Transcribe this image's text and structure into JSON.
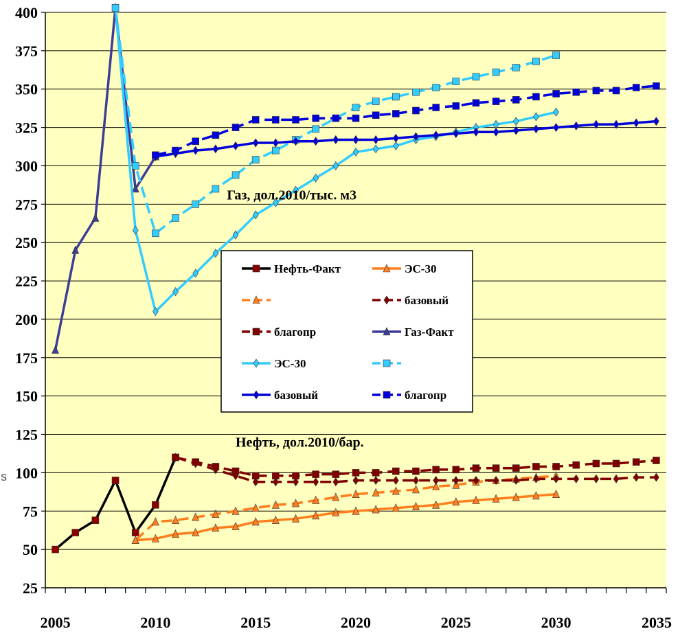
{
  "chart_data": {
    "type": "line",
    "title": "",
    "xlabel": "",
    "ylabel": "",
    "xlim": [
      2005,
      2035
    ],
    "ylim": [
      25,
      400
    ],
    "x_ticks": [
      "2005",
      "2010",
      "2015",
      "2020",
      "2025",
      "2030",
      "2035"
    ],
    "y_ticks": [
      "25",
      "50",
      "75",
      "100",
      "125",
      "150",
      "175",
      "200",
      "225",
      "250",
      "275",
      "300",
      "325",
      "350",
      "375",
      "400"
    ],
    "grid": "horizontal",
    "plot_background": "#FFFFC0",
    "legend_position": "center",
    "annotations": [
      {
        "text": "Газ, дол.2010/тыс. м3",
        "x": 2016.8,
        "y": 278
      },
      {
        "text": "Нефть, дол.2010/бар.",
        "x": 2017.2,
        "y": 117
      }
    ],
    "edge_text": "s",
    "series": [
      {
        "name": "Нефть-Факт",
        "color": "#000000",
        "marker": "square",
        "marker_color": "#8B0000",
        "dashed": false,
        "x": [
          2005,
          2006,
          2007,
          2008,
          2009,
          2010,
          2011
        ],
        "y": [
          50,
          61,
          69,
          95,
          61,
          79,
          110
        ]
      },
      {
        "name": "ЭС-30",
        "color": "#FF7F1E",
        "marker": "triangle",
        "dashed": false,
        "x": [
          2009,
          2010,
          2011,
          2012,
          2013,
          2014,
          2015,
          2016,
          2017,
          2018,
          2019,
          2020,
          2021,
          2022,
          2023,
          2024,
          2025,
          2026,
          2027,
          2028,
          2029,
          2030
        ],
        "y": [
          56,
          57,
          60,
          61,
          64,
          65,
          68,
          69,
          70,
          72,
          74,
          75,
          76,
          77,
          78,
          79,
          81,
          82,
          83,
          84,
          85,
          86
        ]
      },
      {
        "name": "",
        "color": "#FF7F1E",
        "marker": "triangle",
        "dashed": true,
        "x": [
          2009,
          2010,
          2011,
          2012,
          2013,
          2014,
          2015,
          2016,
          2017,
          2018,
          2019,
          2020,
          2021,
          2022,
          2023,
          2024,
          2025,
          2026,
          2027,
          2028,
          2029,
          2030
        ],
        "y": [
          56,
          68,
          69,
          71,
          73,
          75,
          77,
          79,
          80,
          82,
          84,
          86,
          87,
          88,
          89,
          91,
          92,
          94,
          95,
          96,
          97,
          98
        ]
      },
      {
        "name": "базовый",
        "color": "#800000",
        "marker": "diamond",
        "dashed": true,
        "x": [
          2011,
          2012,
          2013,
          2014,
          2015,
          2016,
          2017,
          2018,
          2019,
          2020,
          2021,
          2022,
          2023,
          2024,
          2025,
          2026,
          2027,
          2028,
          2029,
          2030,
          2031,
          2032,
          2033,
          2034,
          2035
        ],
        "y": [
          110,
          106,
          102,
          98,
          94,
          94,
          94,
          94,
          94,
          95,
          95,
          95,
          95,
          95,
          95,
          95,
          95,
          95,
          96,
          96,
          96,
          96,
          96,
          97,
          97
        ]
      },
      {
        "name": "благопр",
        "color": "#800000",
        "marker": "square",
        "dashed": true,
        "x": [
          2011,
          2012,
          2013,
          2014,
          2015,
          2016,
          2017,
          2018,
          2019,
          2020,
          2021,
          2022,
          2023,
          2024,
          2025,
          2026,
          2027,
          2028,
          2029,
          2030,
          2031,
          2032,
          2033,
          2034,
          2035
        ],
        "y": [
          110,
          107,
          104,
          101,
          98,
          98,
          98,
          99,
          99,
          100,
          100,
          101,
          101,
          102,
          102,
          103,
          103,
          103,
          104,
          104,
          105,
          106,
          106,
          107,
          108
        ]
      },
      {
        "name": "Газ-Факт",
        "color": "#3D3D99",
        "marker": "triangle",
        "dashed": false,
        "x": [
          2005,
          2006,
          2007,
          2008,
          2009,
          2010
        ],
        "y": [
          180,
          245,
          266,
          403,
          285,
          306
        ]
      },
      {
        "name": "ЭС-30",
        "color": "#33CCFF",
        "marker": "diamond",
        "dashed": false,
        "x": [
          2008,
          2009,
          2010,
          2011,
          2012,
          2013,
          2014,
          2015,
          2016,
          2017,
          2018,
          2019,
          2020,
          2021,
          2022,
          2023,
          2024,
          2025,
          2026,
          2027,
          2028,
          2029,
          2030
        ],
        "y": [
          403,
          258,
          205,
          218,
          230,
          243,
          255,
          268,
          276,
          284,
          292,
          300,
          309,
          311,
          313,
          317,
          319,
          322,
          325,
          327,
          329,
          332,
          335
        ]
      },
      {
        "name": "",
        "color": "#33CCFF",
        "marker": "square",
        "dashed": true,
        "x": [
          2008,
          2009,
          2010,
          2011,
          2012,
          2013,
          2014,
          2015,
          2016,
          2017,
          2018,
          2019,
          2020,
          2021,
          2022,
          2023,
          2024,
          2025,
          2026,
          2027,
          2028,
          2029,
          2030
        ],
        "y": [
          403,
          300,
          256,
          266,
          275,
          285,
          294,
          304,
          310,
          317,
          324,
          331,
          338,
          342,
          345,
          348,
          351,
          355,
          358,
          361,
          364,
          368,
          372
        ]
      },
      {
        "name": "базовый",
        "color": "#0000DD",
        "marker": "diamond",
        "dashed": false,
        "x": [
          2010,
          2011,
          2012,
          2013,
          2014,
          2015,
          2016,
          2017,
          2018,
          2019,
          2020,
          2021,
          2022,
          2023,
          2024,
          2025,
          2026,
          2027,
          2028,
          2029,
          2030,
          2031,
          2032,
          2033,
          2034,
          2035
        ],
        "y": [
          306,
          308,
          310,
          311,
          313,
          315,
          315,
          316,
          316,
          317,
          317,
          317,
          318,
          319,
          320,
          321,
          322,
          322,
          323,
          324,
          325,
          326,
          327,
          327,
          328,
          329
        ]
      },
      {
        "name": "благопр",
        "color": "#0000DD",
        "marker": "square",
        "dashed": true,
        "x": [
          2010,
          2011,
          2012,
          2013,
          2014,
          2015,
          2016,
          2017,
          2018,
          2019,
          2020,
          2021,
          2022,
          2023,
          2024,
          2025,
          2026,
          2027,
          2028,
          2029,
          2030,
          2031,
          2032,
          2033,
          2034,
          2035
        ],
        "y": [
          307,
          310,
          316,
          320,
          325,
          330,
          330,
          330,
          331,
          331,
          331,
          333,
          334,
          336,
          338,
          339,
          341,
          342,
          343,
          345,
          347,
          348,
          349,
          349,
          351,
          352
        ]
      }
    ]
  }
}
